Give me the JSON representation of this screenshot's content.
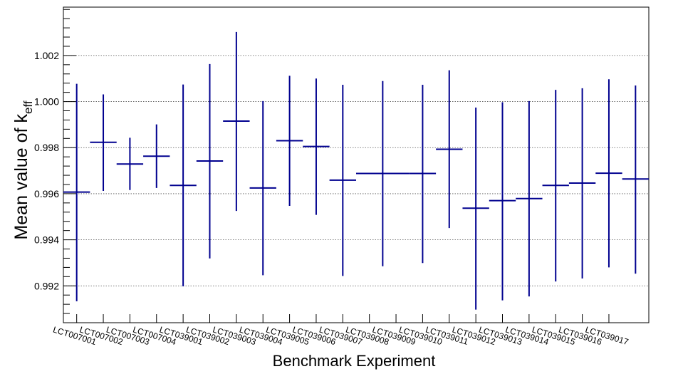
{
  "chart_data": {
    "type": "scatter",
    "xlabel": "Benchmark Experiment",
    "ylabel_main": "Mean value of k",
    "ylabel_sub": "eff",
    "ylim": [
      0.9904,
      1.0041
    ],
    "yticks_major": [
      0.992,
      0.994,
      0.996,
      0.998,
      1.0,
      1.002
    ],
    "ytick_labels": [
      "0.992",
      "0.994",
      "0.996",
      "0.998",
      "1.000",
      "1.002"
    ],
    "grid": "horizontal dotted",
    "series_color": "#00008f",
    "categories": [
      "LCT007001",
      "LCT007002",
      "LCT007003",
      "LCT007004",
      "LCT039001",
      "LCT039002",
      "LCT039003",
      "LCT039004",
      "LCT039005",
      "LCT039006",
      "LCT039007",
      "LCT039008",
      "LCT039009",
      "LCT039010",
      "LCT039011",
      "LCT039012",
      "LCT039013",
      "LCT039014",
      "LCT039015",
      "LCT039016",
      "LCT039017"
    ],
    "points": [
      {
        "x": 0.5,
        "xerr": 0.5,
        "y": 0.99607,
        "ylo": 0.99133,
        "yhi": 1.00077
      },
      {
        "x": 1.5,
        "xerr": 0.5,
        "y": 0.99823,
        "ylo": 0.99612,
        "yhi": 1.00031
      },
      {
        "x": 2.5,
        "xerr": 0.5,
        "y": 0.99729,
        "ylo": 0.99616,
        "yhi": 0.99843
      },
      {
        "x": 3.5,
        "xerr": 0.5,
        "y": 0.99763,
        "ylo": 0.99625,
        "yhi": 0.99901
      },
      {
        "x": 4.5,
        "xerr": 0.5,
        "y": 0.99636,
        "ylo": 0.99198,
        "yhi": 1.00074
      },
      {
        "x": 5.5,
        "xerr": 0.5,
        "y": 0.99742,
        "ylo": 0.99319,
        "yhi": 1.00163
      },
      {
        "x": 6.5,
        "xerr": 0.5,
        "y": 0.99915,
        "ylo": 0.99525,
        "yhi": 1.00302
      },
      {
        "x": 7.5,
        "xerr": 0.5,
        "y": 0.99625,
        "ylo": 0.99246,
        "yhi": 1.00002
      },
      {
        "x": 8.5,
        "xerr": 0.5,
        "y": 0.9983,
        "ylo": 0.99547,
        "yhi": 1.00112
      },
      {
        "x": 9.5,
        "xerr": 0.5,
        "y": 0.99805,
        "ylo": 0.99508,
        "yhi": 1.001
      },
      {
        "x": 10.5,
        "xerr": 0.5,
        "y": 0.99659,
        "ylo": 0.99243,
        "yhi": 1.00073
      },
      {
        "x": 12.0,
        "xerr": 1.0,
        "y": 0.99688,
        "ylo": 0.99285,
        "yhi": 1.00089
      },
      {
        "x": 13.5,
        "xerr": 0.5,
        "y": 0.99688,
        "ylo": 0.99299,
        "yhi": 1.00073
      },
      {
        "x": 14.5,
        "xerr": 0.5,
        "y": 0.99793,
        "ylo": 0.99451,
        "yhi": 1.00136
      },
      {
        "x": 15.5,
        "xerr": 0.5,
        "y": 0.99537,
        "ylo": 0.99097,
        "yhi": 0.99974
      },
      {
        "x": 16.5,
        "xerr": 0.5,
        "y": 0.9957,
        "ylo": 0.99137,
        "yhi": 0.99997
      },
      {
        "x": 17.5,
        "xerr": 0.5,
        "y": 0.99579,
        "ylo": 0.99154,
        "yhi": 1.00002
      },
      {
        "x": 18.5,
        "xerr": 0.5,
        "y": 0.99636,
        "ylo": 0.99219,
        "yhi": 1.00051
      },
      {
        "x": 19.5,
        "xerr": 0.5,
        "y": 0.99646,
        "ylo": 0.99232,
        "yhi": 1.00058
      },
      {
        "x": 20.5,
        "xerr": 0.5,
        "y": 0.99689,
        "ylo": 0.9928,
        "yhi": 1.00097
      },
      {
        "x": 21.5,
        "xerr": 0.5,
        "y": 0.99664,
        "ylo": 0.99253,
        "yhi": 1.0007
      }
    ],
    "xlim": [
      0,
      22
    ]
  }
}
